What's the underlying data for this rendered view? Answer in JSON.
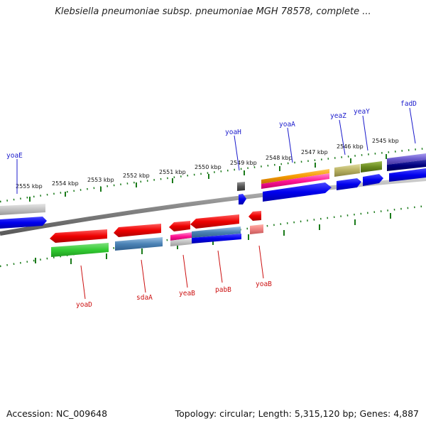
{
  "title": "Klebsiella pneumoniae subsp. pneumoniae MGH 78578, complete ...",
  "footer": {
    "accession": "Accession: NC_009648",
    "topology": "Topology: circular; Length: 5,315,120 bp; Genes: 4,887"
  },
  "kbp_labels": [
    "2555 kbp",
    "2554 kbp",
    "2553 kbp",
    "2552 kbp",
    "2551 kbp",
    "2550 kbp",
    "2549 kbp",
    "2548 kbp",
    "2547 kbp",
    "2546 kbp",
    "2545 kbp"
  ],
  "genes_top": [
    "yoaE",
    "yoaH",
    "yoaA",
    "yeaZ",
    "yeaY",
    "fadD"
  ],
  "genes_bottom": [
    "yoaD",
    "sdaA",
    "yeaB",
    "pabB",
    "yoaB"
  ],
  "colors": {
    "top_label": "#1b1bcc",
    "bottom_label": "#cc1111",
    "tick": "#1a7a1a",
    "backbone": "#888888"
  }
}
